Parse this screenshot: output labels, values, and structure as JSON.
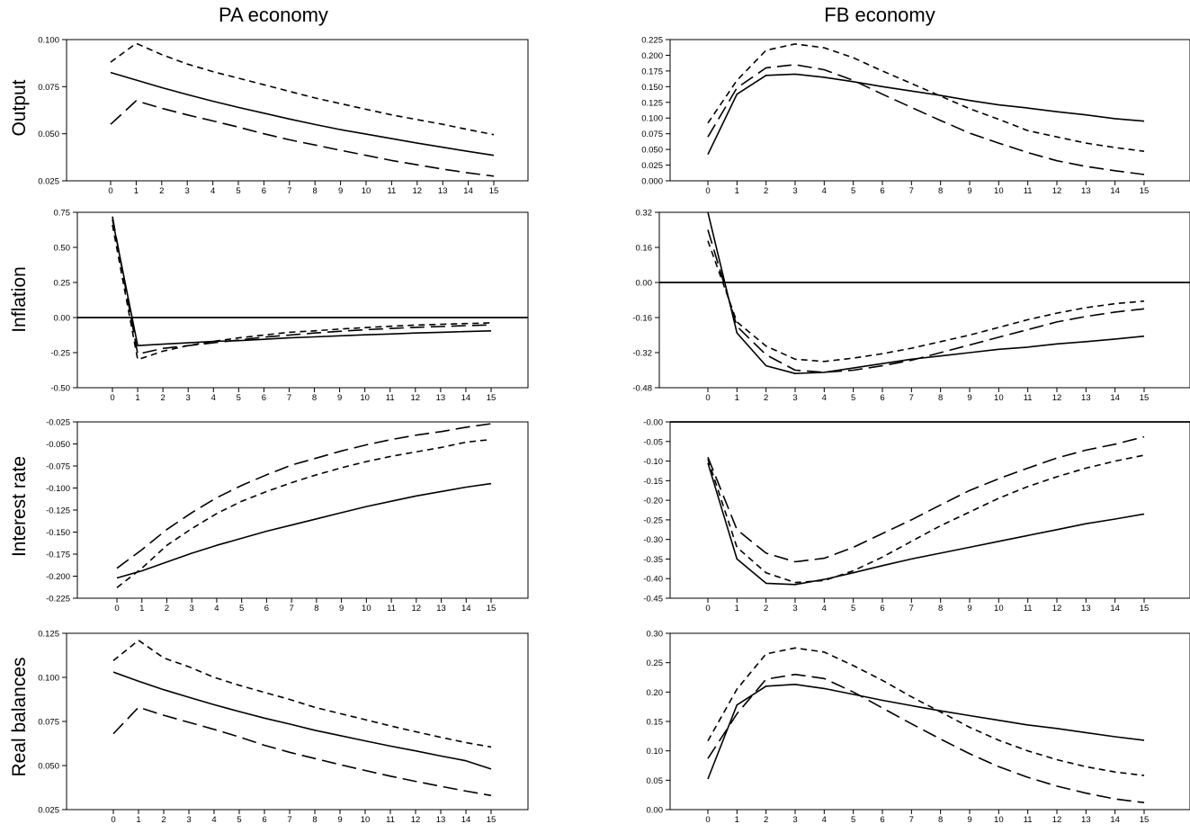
{
  "columns": [
    {
      "title": "PA economy"
    },
    {
      "title": "FB economy"
    }
  ],
  "rows": [
    {
      "label": "Output"
    },
    {
      "label": "Inflation"
    },
    {
      "label": "Interest rate"
    },
    {
      "label": "Real balances"
    }
  ],
  "chart_data": [
    {
      "type": "line",
      "panel": "PA-Output",
      "row_label": "Output",
      "column_title": "PA economy",
      "x": [
        0,
        1,
        2,
        3,
        4,
        5,
        6,
        7,
        8,
        9,
        10,
        11,
        12,
        13,
        14,
        15
      ],
      "ylim": [
        0.025,
        0.1
      ],
      "yticks": [
        0.025,
        0.05,
        0.075,
        0.1
      ],
      "ytick_labels": [
        "0.025",
        "0.050",
        "0.075",
        "0.100"
      ],
      "series": [
        {
          "style": "solid",
          "values": [
            0.0825,
            0.0785,
            0.0745,
            0.0708,
            0.0673,
            0.064,
            0.0609,
            0.0578,
            0.0549,
            0.0522,
            0.0498,
            0.0474,
            0.045,
            0.0428,
            0.0406,
            0.0385
          ]
        },
        {
          "style": "short-dash",
          "values": [
            0.088,
            0.098,
            0.092,
            0.087,
            0.083,
            0.0795,
            0.076,
            0.0725,
            0.069,
            0.066,
            0.063,
            0.06,
            0.0575,
            0.055,
            0.0522,
            0.0495
          ]
        },
        {
          "style": "long-dash",
          "values": [
            0.055,
            0.0675,
            0.0635,
            0.06,
            0.0568,
            0.0535,
            0.05,
            0.0468,
            0.044,
            0.0412,
            0.0385,
            0.0358,
            0.0335,
            0.0312,
            0.0292,
            0.0275
          ]
        }
      ]
    },
    {
      "type": "line",
      "panel": "FB-Output",
      "row_label": "Output",
      "column_title": "FB economy",
      "x": [
        0,
        1,
        2,
        3,
        4,
        5,
        6,
        7,
        8,
        9,
        10,
        11,
        12,
        13,
        14,
        15
      ],
      "ylim": [
        0.0,
        0.225
      ],
      "yticks": [
        0,
        0.025,
        0.05,
        0.075,
        0.1,
        0.125,
        0.15,
        0.175,
        0.2,
        0.225
      ],
      "ytick_labels": [
        "0.000",
        "0.025",
        "0.050",
        "0.075",
        "0.100",
        "0.125",
        "0.150",
        "0.175",
        "0.200",
        "0.225"
      ],
      "series": [
        {
          "style": "solid",
          "values": [
            0.042,
            0.138,
            0.168,
            0.17,
            0.165,
            0.158,
            0.15,
            0.143,
            0.136,
            0.128,
            0.121,
            0.116,
            0.11,
            0.105,
            0.099,
            0.095
          ]
        },
        {
          "style": "short-dash",
          "values": [
            0.092,
            0.16,
            0.208,
            0.218,
            0.212,
            0.196,
            0.175,
            0.155,
            0.135,
            0.115,
            0.098,
            0.08,
            0.07,
            0.06,
            0.053,
            0.047
          ]
        },
        {
          "style": "long-dash",
          "values": [
            0.07,
            0.148,
            0.18,
            0.185,
            0.177,
            0.16,
            0.138,
            0.117,
            0.096,
            0.076,
            0.06,
            0.045,
            0.032,
            0.023,
            0.016,
            0.01
          ]
        }
      ]
    },
    {
      "type": "line",
      "panel": "PA-Inflation",
      "row_label": "Inflation",
      "column_title": "PA economy",
      "x": [
        0,
        1,
        2,
        3,
        4,
        5,
        6,
        7,
        8,
        9,
        10,
        11,
        12,
        13,
        14,
        15
      ],
      "ylim": [
        -0.5,
        0.75
      ],
      "yticks": [
        -0.5,
        -0.25,
        0,
        0.25,
        0.5,
        0.75
      ],
      "ytick_labels": [
        "-0.50",
        "-0.25",
        "0.00",
        "0.25",
        "0.50",
        "0.75"
      ],
      "zero_line": true,
      "series": [
        {
          "style": "solid",
          "values": [
            0.7,
            -0.2,
            -0.19,
            -0.18,
            -0.17,
            -0.165,
            -0.155,
            -0.145,
            -0.138,
            -0.13,
            -0.123,
            -0.117,
            -0.11,
            -0.105,
            -0.1,
            -0.095
          ]
        },
        {
          "style": "short-dash",
          "values": [
            0.66,
            -0.3,
            -0.24,
            -0.2,
            -0.17,
            -0.145,
            -0.125,
            -0.105,
            -0.095,
            -0.082,
            -0.072,
            -0.062,
            -0.054,
            -0.048,
            -0.043,
            -0.038
          ]
        },
        {
          "style": "long-dash",
          "values": [
            0.72,
            -0.26,
            -0.22,
            -0.2,
            -0.18,
            -0.16,
            -0.14,
            -0.125,
            -0.11,
            -0.098,
            -0.087,
            -0.078,
            -0.07,
            -0.064,
            -0.058,
            -0.052
          ]
        }
      ]
    },
    {
      "type": "line",
      "panel": "FB-Inflation",
      "row_label": "Inflation",
      "column_title": "FB economy",
      "x": [
        0,
        1,
        2,
        3,
        4,
        5,
        6,
        7,
        8,
        9,
        10,
        11,
        12,
        13,
        14,
        15
      ],
      "ylim": [
        -0.48,
        0.32
      ],
      "yticks": [
        -0.48,
        -0.32,
        -0.16,
        0,
        0.16,
        0.32
      ],
      "ytick_labels": [
        "-0.48",
        "-0.32",
        "-0.16",
        "0.00",
        "0.16",
        "0.32"
      ],
      "zero_line": true,
      "series": [
        {
          "style": "solid",
          "values": [
            0.32,
            -0.23,
            -0.38,
            -0.415,
            -0.41,
            -0.39,
            -0.37,
            -0.35,
            -0.335,
            -0.32,
            -0.305,
            -0.295,
            -0.28,
            -0.27,
            -0.258,
            -0.245
          ]
        },
        {
          "style": "short-dash",
          "values": [
            0.19,
            -0.18,
            -0.29,
            -0.35,
            -0.36,
            -0.345,
            -0.325,
            -0.3,
            -0.27,
            -0.24,
            -0.205,
            -0.17,
            -0.14,
            -0.115,
            -0.097,
            -0.085
          ]
        },
        {
          "style": "long-dash",
          "values": [
            0.24,
            -0.2,
            -0.33,
            -0.4,
            -0.41,
            -0.4,
            -0.38,
            -0.355,
            -0.32,
            -0.285,
            -0.25,
            -0.215,
            -0.18,
            -0.155,
            -0.135,
            -0.12
          ]
        }
      ]
    },
    {
      "type": "line",
      "panel": "PA-Interest",
      "row_label": "Interest rate",
      "column_title": "PA economy",
      "x": [
        0,
        1,
        2,
        3,
        4,
        5,
        6,
        7,
        8,
        9,
        10,
        11,
        12,
        13,
        14,
        15
      ],
      "ylim": [
        -0.225,
        -0.025
      ],
      "yticks": [
        -0.225,
        -0.2,
        -0.175,
        -0.15,
        -0.125,
        -0.1,
        -0.075,
        -0.05,
        -0.025
      ],
      "ytick_labels": [
        "-0.225",
        "-0.200",
        "-0.175",
        "-0.150",
        "-0.125",
        "-0.100",
        "-0.075",
        "-0.050",
        "-0.025"
      ],
      "series": [
        {
          "style": "solid",
          "values": [
            -0.202,
            -0.194,
            -0.184,
            -0.174,
            -0.165,
            -0.157,
            -0.149,
            -0.142,
            -0.135,
            -0.128,
            -0.121,
            -0.115,
            -0.109,
            -0.104,
            -0.099,
            -0.095
          ]
        },
        {
          "style": "short-dash",
          "values": [
            -0.213,
            -0.191,
            -0.165,
            -0.146,
            -0.129,
            -0.115,
            -0.104,
            -0.094,
            -0.085,
            -0.077,
            -0.07,
            -0.064,
            -0.059,
            -0.054,
            -0.048,
            -0.045
          ]
        },
        {
          "style": "long-dash",
          "values": [
            -0.191,
            -0.17,
            -0.147,
            -0.128,
            -0.111,
            -0.097,
            -0.085,
            -0.074,
            -0.066,
            -0.058,
            -0.051,
            -0.045,
            -0.04,
            -0.036,
            -0.031,
            -0.027
          ]
        }
      ]
    },
    {
      "type": "line",
      "panel": "FB-Interest",
      "row_label": "Interest rate",
      "column_title": "FB economy",
      "x": [
        0,
        1,
        2,
        3,
        4,
        5,
        6,
        7,
        8,
        9,
        10,
        11,
        12,
        13,
        14,
        15
      ],
      "ylim": [
        -0.45,
        0.0
      ],
      "yticks": [
        -0.45,
        -0.4,
        -0.35,
        -0.3,
        -0.25,
        -0.2,
        -0.15,
        -0.1,
        -0.05,
        0
      ],
      "ytick_labels": [
        "-0.45",
        "-0.40",
        "-0.35",
        "-0.30",
        "-0.25",
        "-0.20",
        "-0.15",
        "-0.10",
        "-0.05",
        "-0.00"
      ],
      "zero_line": true,
      "series": [
        {
          "style": "solid",
          "values": [
            -0.105,
            -0.35,
            -0.412,
            -0.415,
            -0.402,
            -0.385,
            -0.367,
            -0.35,
            -0.335,
            -0.32,
            -0.305,
            -0.29,
            -0.275,
            -0.26,
            -0.248,
            -0.235
          ]
        },
        {
          "style": "short-dash",
          "values": [
            -0.095,
            -0.32,
            -0.385,
            -0.41,
            -0.405,
            -0.38,
            -0.345,
            -0.305,
            -0.265,
            -0.23,
            -0.195,
            -0.165,
            -0.14,
            -0.118,
            -0.1,
            -0.085
          ]
        },
        {
          "style": "long-dash",
          "values": [
            -0.09,
            -0.275,
            -0.335,
            -0.357,
            -0.348,
            -0.32,
            -0.285,
            -0.25,
            -0.212,
            -0.175,
            -0.145,
            -0.118,
            -0.092,
            -0.072,
            -0.057,
            -0.038
          ]
        }
      ]
    },
    {
      "type": "line",
      "panel": "PA-RealBalances",
      "row_label": "Real balances",
      "column_title": "PA economy",
      "x": [
        0,
        1,
        2,
        3,
        4,
        5,
        6,
        7,
        8,
        9,
        10,
        11,
        12,
        13,
        14,
        15
      ],
      "ylim": [
        0.025,
        0.125
      ],
      "yticks": [
        0.025,
        0.05,
        0.075,
        0.1,
        0.125
      ],
      "ytick_labels": [
        "0.025",
        "0.050",
        "0.075",
        "0.100",
        "0.125"
      ],
      "series": [
        {
          "style": "solid",
          "values": [
            0.103,
            0.0978,
            0.093,
            0.0887,
            0.0845,
            0.0806,
            0.0769,
            0.0735,
            0.07,
            0.067,
            0.064,
            0.061,
            0.0583,
            0.0554,
            0.0527,
            0.048
          ]
        },
        {
          "style": "short-dash",
          "values": [
            0.1095,
            0.121,
            0.111,
            0.106,
            0.1,
            0.0955,
            0.0915,
            0.0875,
            0.083,
            0.0795,
            0.076,
            0.0725,
            0.0692,
            0.066,
            0.063,
            0.0605
          ]
        },
        {
          "style": "long-dash",
          "values": [
            0.068,
            0.083,
            0.0785,
            0.0745,
            0.0705,
            0.0662,
            0.0615,
            0.0575,
            0.054,
            0.0505,
            0.0472,
            0.044,
            0.041,
            0.0382,
            0.0355,
            0.033
          ]
        }
      ]
    },
    {
      "type": "line",
      "panel": "FB-RealBalances",
      "row_label": "Real balances",
      "column_title": "FB economy",
      "x": [
        0,
        1,
        2,
        3,
        4,
        5,
        6,
        7,
        8,
        9,
        10,
        11,
        12,
        13,
        14,
        15
      ],
      "ylim": [
        0.0,
        0.3
      ],
      "yticks": [
        0,
        0.05,
        0.1,
        0.15,
        0.2,
        0.25,
        0.3
      ],
      "ytick_labels": [
        "0.00",
        "0.05",
        "0.10",
        "0.15",
        "0.20",
        "0.25",
        "0.30"
      ],
      "series": [
        {
          "style": "solid",
          "values": [
            0.052,
            0.178,
            0.21,
            0.213,
            0.206,
            0.196,
            0.186,
            0.177,
            0.168,
            0.16,
            0.152,
            0.144,
            0.138,
            0.131,
            0.124,
            0.118
          ]
        },
        {
          "style": "short-dash",
          "values": [
            0.117,
            0.205,
            0.265,
            0.275,
            0.268,
            0.245,
            0.22,
            0.192,
            0.166,
            0.14,
            0.118,
            0.1,
            0.085,
            0.073,
            0.064,
            0.058
          ]
        },
        {
          "style": "long-dash",
          "values": [
            0.087,
            0.163,
            0.222,
            0.23,
            0.223,
            0.2,
            0.173,
            0.146,
            0.12,
            0.095,
            0.073,
            0.055,
            0.04,
            0.028,
            0.018,
            0.012
          ]
        }
      ]
    }
  ]
}
